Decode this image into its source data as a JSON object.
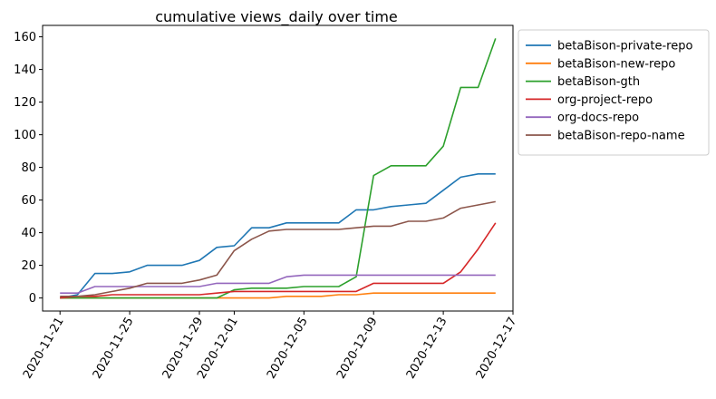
{
  "chart_data": {
    "type": "line",
    "title": "cumulative views_daily over time",
    "xlabel": "",
    "ylabel": "",
    "x_ticks": [
      "2020-11-21",
      "2020-11-25",
      "2020-11-29",
      "2020-12-01",
      "2020-12-05",
      "2020-12-09",
      "2020-12-13",
      "2020-12-17"
    ],
    "y_ticks": [
      0,
      20,
      40,
      60,
      80,
      100,
      120,
      140,
      160
    ],
    "xlim": [
      "2020-11-20",
      "2020-12-17"
    ],
    "ylim": [
      -8,
      167
    ],
    "grid": false,
    "legend_position": "outside-top-right",
    "x": [
      "2020-11-21",
      "2020-11-22",
      "2020-11-23",
      "2020-11-24",
      "2020-11-25",
      "2020-11-26",
      "2020-11-27",
      "2020-11-28",
      "2020-11-29",
      "2020-11-30",
      "2020-12-01",
      "2020-12-02",
      "2020-12-03",
      "2020-12-04",
      "2020-12-05",
      "2020-12-06",
      "2020-12-07",
      "2020-12-08",
      "2020-12-09",
      "2020-12-10",
      "2020-12-11",
      "2020-12-12",
      "2020-12-13",
      "2020-12-14",
      "2020-12-15",
      "2020-12-16"
    ],
    "series": [
      {
        "name": "betaBison-private-repo",
        "color": "#1f77b4",
        "values": [
          0,
          2,
          15,
          15,
          16,
          20,
          20,
          20,
          23,
          31,
          32,
          43,
          43,
          46,
          46,
          46,
          46,
          54,
          54,
          56,
          57,
          58,
          66,
          74,
          76,
          76
        ]
      },
      {
        "name": "betaBison-new-repo",
        "color": "#ff7f0e",
        "values": [
          0,
          0,
          0,
          0,
          0,
          0,
          0,
          0,
          0,
          0,
          0,
          0,
          0,
          1,
          1,
          1,
          2,
          2,
          3,
          3,
          3,
          3,
          3,
          3,
          3,
          3
        ]
      },
      {
        "name": "betaBison-gth",
        "color": "#2ca02c",
        "values": [
          0,
          0,
          0,
          0,
          0,
          0,
          0,
          0,
          0,
          0,
          5,
          6,
          6,
          6,
          7,
          7,
          7,
          13,
          75,
          81,
          81,
          81,
          93,
          129,
          129,
          159
        ]
      },
      {
        "name": "org-project-repo",
        "color": "#d62728",
        "values": [
          0,
          1,
          1,
          2,
          2,
          2,
          2,
          2,
          2,
          3,
          4,
          4,
          4,
          4,
          4,
          4,
          4,
          4,
          9,
          9,
          9,
          9,
          9,
          16,
          30,
          46
        ]
      },
      {
        "name": "org-docs-repo",
        "color": "#9467bd",
        "values": [
          3,
          3,
          7,
          7,
          7,
          7,
          7,
          7,
          7,
          9,
          9,
          9,
          9,
          13,
          14,
          14,
          14,
          14,
          14,
          14,
          14,
          14,
          14,
          14,
          14,
          14
        ]
      },
      {
        "name": "betaBison-repo-name",
        "color": "#8c564b",
        "values": [
          1,
          1,
          2,
          4,
          6,
          9,
          9,
          9,
          11,
          14,
          29,
          36,
          41,
          42,
          42,
          42,
          42,
          43,
          44,
          44,
          47,
          47,
          49,
          55,
          57,
          59
        ]
      }
    ]
  }
}
